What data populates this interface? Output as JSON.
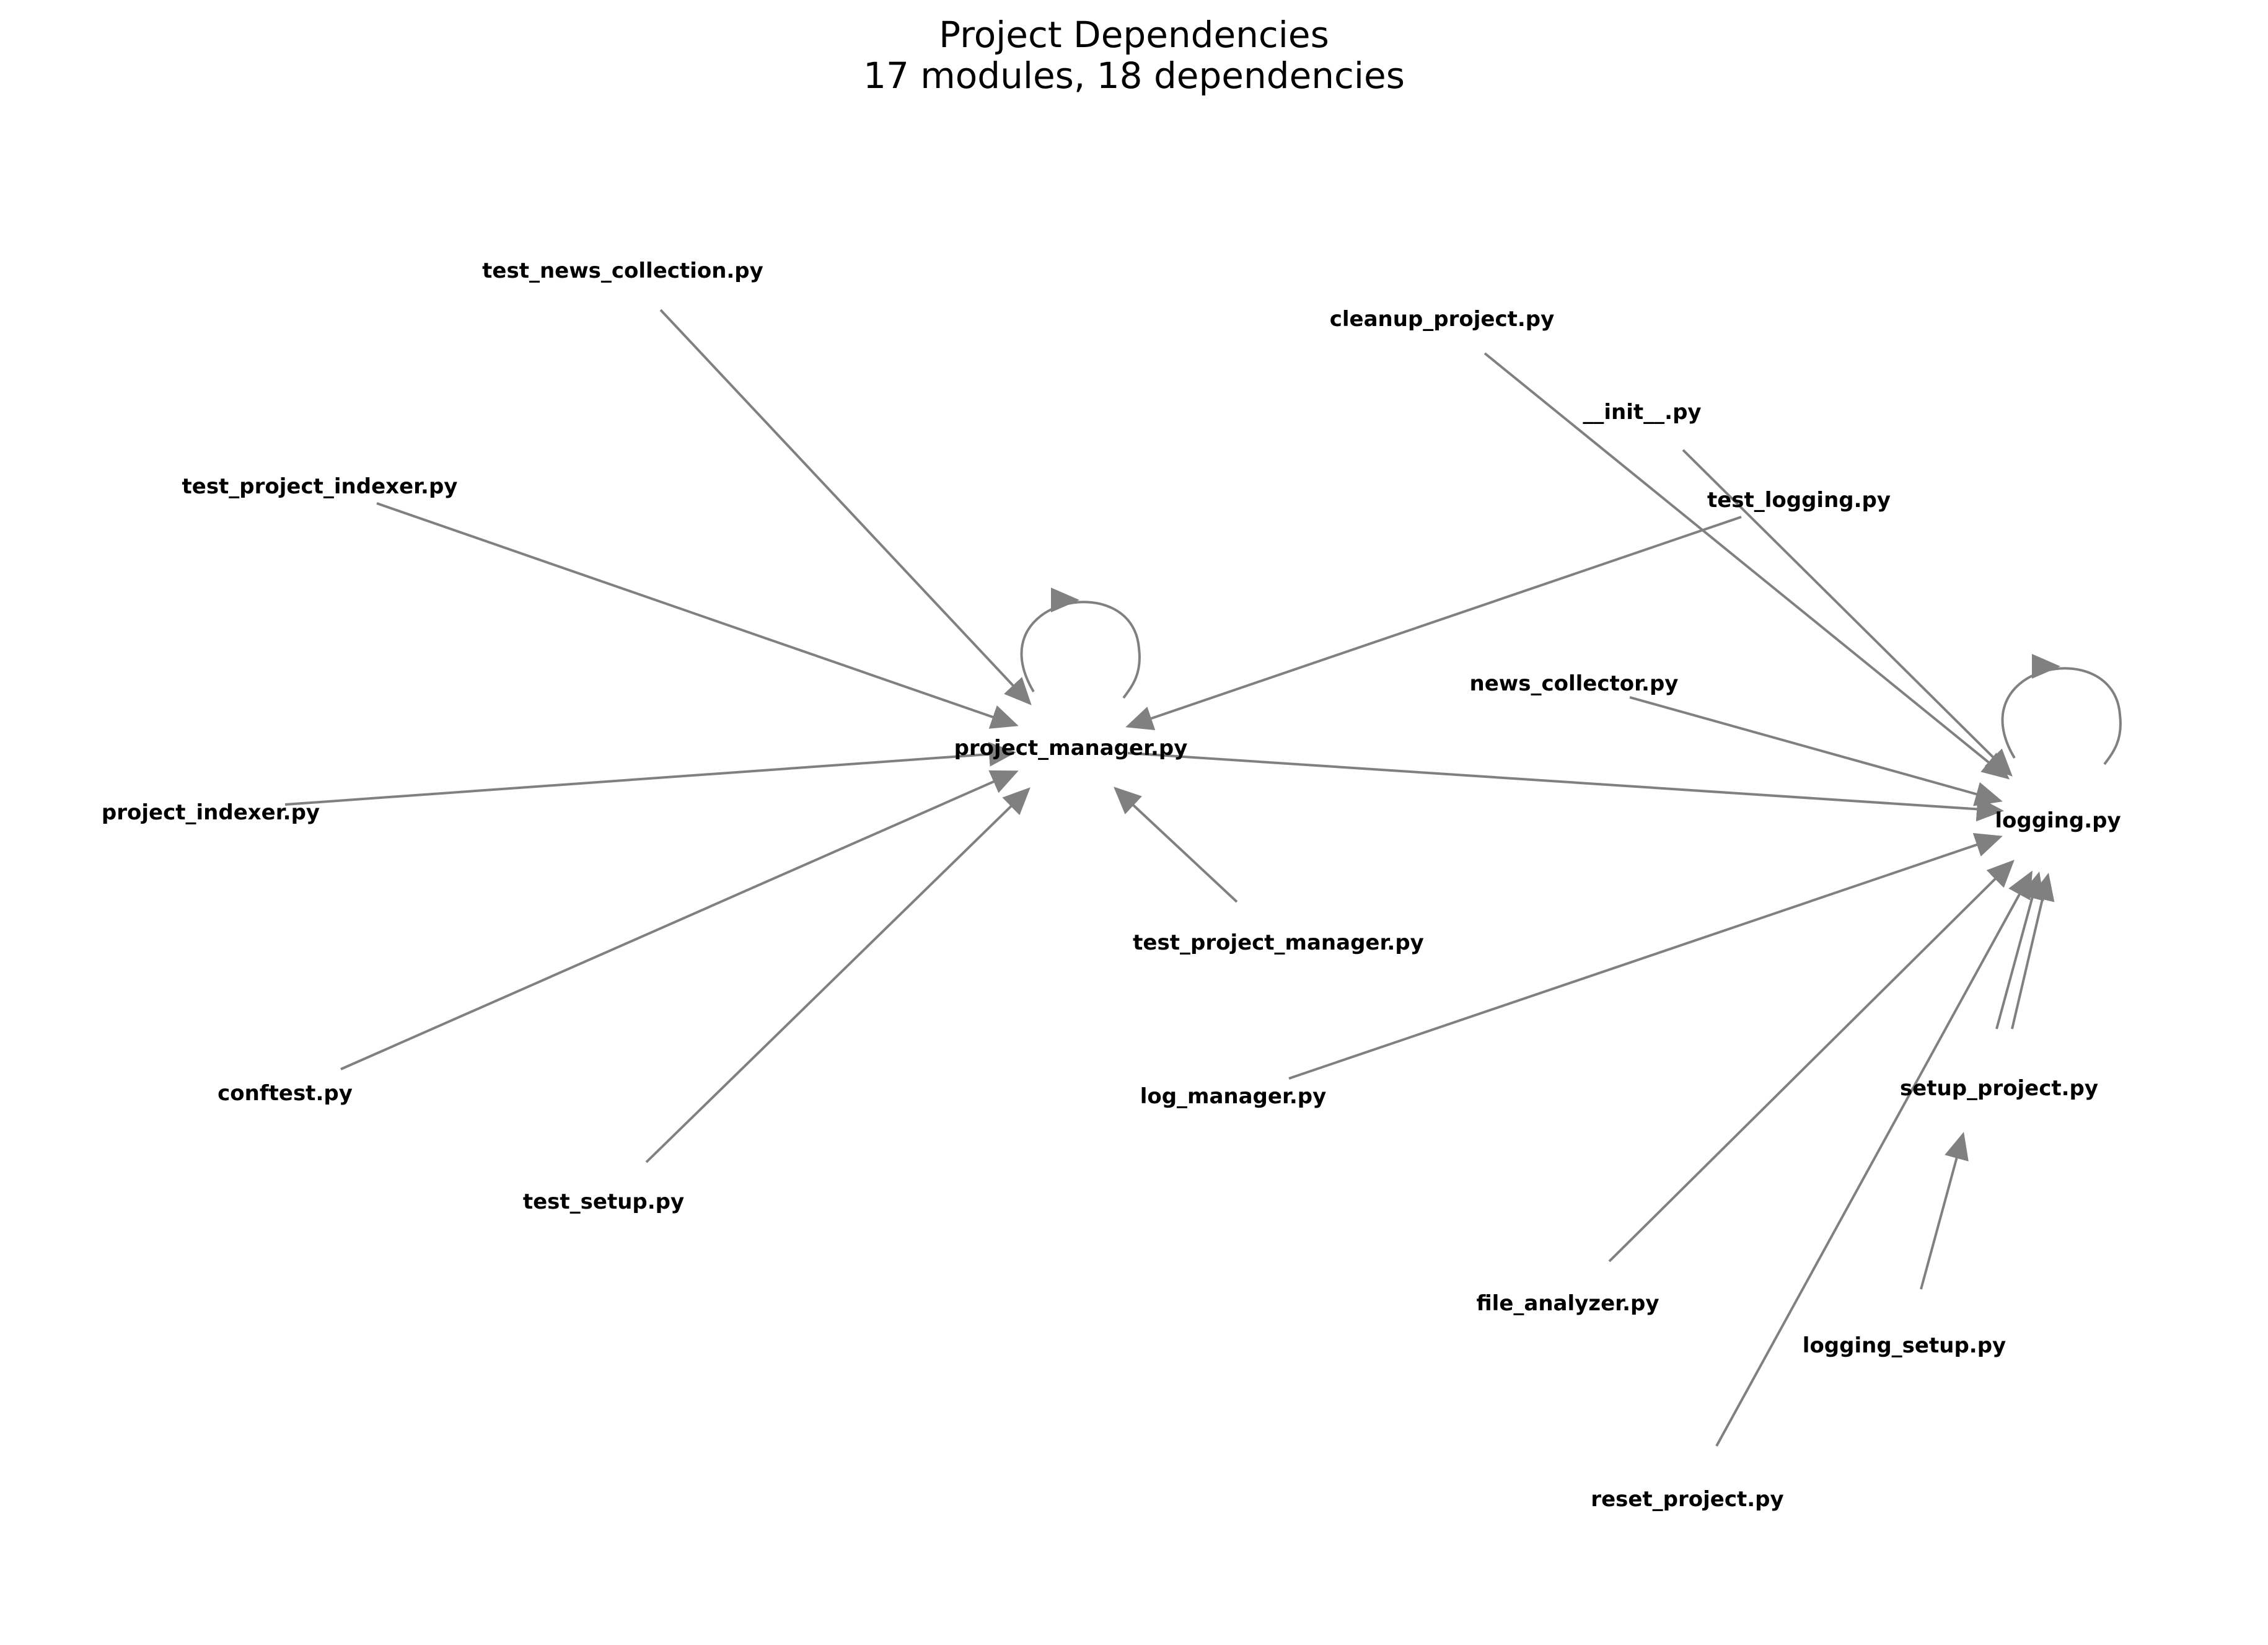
{
  "title": "Project Dependencies",
  "subtitle": "17 modules, 18 dependencies",
  "edge_color": "#808080",
  "label_color": "#000000",
  "nodes": [
    {
      "id": "test_news_collection",
      "label": "test_news_collection.py"
    },
    {
      "id": "cleanup_project",
      "label": "cleanup_project.py"
    },
    {
      "id": "init",
      "label": "__init__.py"
    },
    {
      "id": "test_project_indexer",
      "label": "test_project_indexer.py"
    },
    {
      "id": "test_logging",
      "label": "test_logging.py"
    },
    {
      "id": "news_collector",
      "label": "news_collector.py"
    },
    {
      "id": "project_manager",
      "label": "project_manager.py"
    },
    {
      "id": "logging",
      "label": "logging.py"
    },
    {
      "id": "project_indexer",
      "label": "project_indexer.py"
    },
    {
      "id": "test_project_manager",
      "label": "test_project_manager.py"
    },
    {
      "id": "conftest",
      "label": "conftest.py"
    },
    {
      "id": "log_manager",
      "label": "log_manager.py"
    },
    {
      "id": "setup_project",
      "label": "setup_project.py"
    },
    {
      "id": "test_setup",
      "label": "test_setup.py"
    },
    {
      "id": "file_analyzer",
      "label": "file_analyzer.py"
    },
    {
      "id": "logging_setup",
      "label": "logging_setup.py"
    },
    {
      "id": "reset_project",
      "label": "reset_project.py"
    }
  ],
  "edges": [
    {
      "from": "test_news_collection",
      "to": "project_manager"
    },
    {
      "from": "test_project_indexer",
      "to": "project_manager"
    },
    {
      "from": "project_indexer",
      "to": "project_manager"
    },
    {
      "from": "conftest",
      "to": "project_manager"
    },
    {
      "from": "test_setup",
      "to": "project_manager"
    },
    {
      "from": "test_project_manager",
      "to": "project_manager"
    },
    {
      "from": "test_logging",
      "to": "project_manager"
    },
    {
      "from": "project_manager",
      "to": "project_manager"
    },
    {
      "from": "project_manager",
      "to": "logging"
    },
    {
      "from": "cleanup_project",
      "to": "logging"
    },
    {
      "from": "init",
      "to": "logging"
    },
    {
      "from": "news_collector",
      "to": "logging"
    },
    {
      "from": "log_manager",
      "to": "logging"
    },
    {
      "from": "file_analyzer",
      "to": "logging"
    },
    {
      "from": "reset_project",
      "to": "logging"
    },
    {
      "from": "setup_project",
      "to": "logging"
    },
    {
      "from": "logging_setup",
      "to": "logging"
    },
    {
      "from": "logging",
      "to": "logging"
    }
  ]
}
